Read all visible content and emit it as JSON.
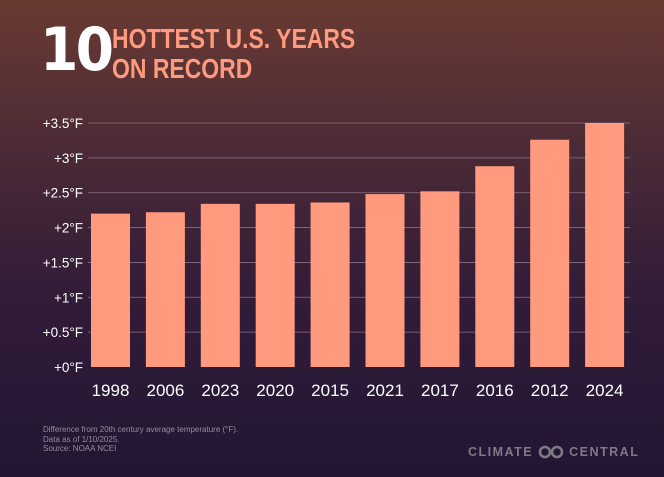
{
  "header": {
    "number": "10",
    "line1": "HOTTEST U.S. YEARS",
    "line2": "ON RECORD"
  },
  "footnote": {
    "line1": "Difference from 20th century average temperature (°F).",
    "line2": "Data as of 1/10/2025.",
    "line3": "Source: NOAA NCEI"
  },
  "logo": {
    "left": "CLIMATE",
    "right": "CENTRAL",
    "icon": "infinity-icon"
  },
  "colors": {
    "bar": "#ff9a7e",
    "title_number": "#ffffff",
    "title_text": "#ff9a7e",
    "axis_text": "#ffffff",
    "gridline": "#8a6f83"
  },
  "chart_data": {
    "type": "bar",
    "title": "10 HOTTEST U.S. YEARS ON RECORD",
    "xlabel": "",
    "ylabel": "",
    "categories": [
      "1998",
      "2006",
      "2023",
      "2020",
      "2015",
      "2021",
      "2017",
      "2016",
      "2012",
      "2024"
    ],
    "values": [
      2.2,
      2.22,
      2.34,
      2.34,
      2.36,
      2.48,
      2.52,
      2.88,
      3.26,
      3.5
    ],
    "ylim": [
      0,
      3.5
    ],
    "yticks": [
      0,
      0.5,
      1,
      1.5,
      2,
      2.5,
      3,
      3.5
    ],
    "ytick_labels": [
      "+0°F",
      "+0.5°F",
      "+1°F",
      "+1.5°F",
      "+2°F",
      "+2.5°F",
      "+3°F",
      "+3.5°F"
    ],
    "grid": true,
    "legend": "none"
  }
}
